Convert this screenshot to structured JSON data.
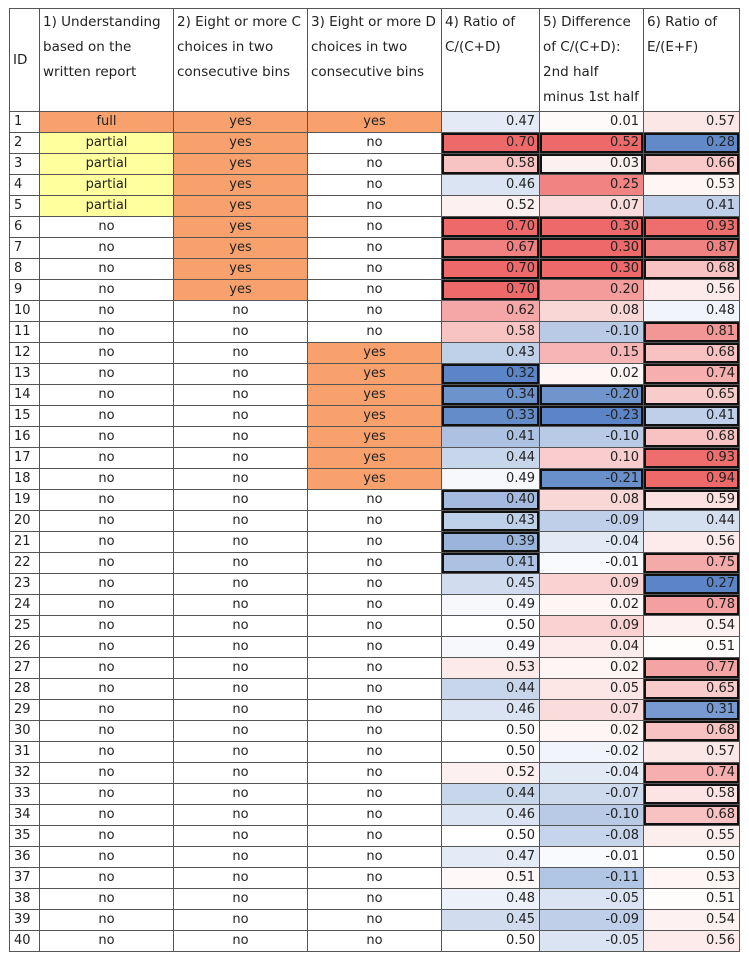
{
  "headers": [
    "ID",
    "1) Understanding based on the written report",
    "2) Eight or more C choices in two consecutive bins",
    "3) Eight or more D choices in two consecutive bins",
    "4) Ratio of C/(C+D)",
    "5) Difference of C/(C+D): 2nd half minus 1st half",
    "6) Ratio of E/(E+F)"
  ],
  "colors": {
    "orange": "#f8a16c",
    "yellow": "#ffff9d",
    "red_strong": "#ee6a6a",
    "blue_strong": "#5b85c6",
    "neutral": "#ffffff",
    "border": "#555555"
  },
  "rows": [
    {
      "id": "1",
      "u": "full",
      "c": "yes",
      "d": "yes",
      "r4": "0.47",
      "r5": "0.01",
      "r6": "0.57",
      "b4": false,
      "b5": false,
      "b6": false
    },
    {
      "id": "2",
      "u": "partial",
      "c": "yes",
      "d": "no",
      "r4": "0.70",
      "r5": "0.52",
      "r6": "0.28",
      "b4": true,
      "b5": true,
      "b6": true
    },
    {
      "id": "3",
      "u": "partial",
      "c": "yes",
      "d": "no",
      "r4": "0.58",
      "r5": "0.03",
      "r6": "0.66",
      "b4": true,
      "b5": true,
      "b6": true
    },
    {
      "id": "4",
      "u": "partial",
      "c": "yes",
      "d": "no",
      "r4": "0.46",
      "r5": "0.25",
      "r6": "0.53",
      "b4": false,
      "b5": false,
      "b6": false
    },
    {
      "id": "5",
      "u": "partial",
      "c": "yes",
      "d": "no",
      "r4": "0.52",
      "r5": "0.07",
      "r6": "0.41",
      "b4": false,
      "b5": false,
      "b6": false
    },
    {
      "id": "6",
      "u": "no",
      "c": "yes",
      "d": "no",
      "r4": "0.70",
      "r5": "0.30",
      "r6": "0.93",
      "b4": true,
      "b5": true,
      "b6": true
    },
    {
      "id": "7",
      "u": "no",
      "c": "yes",
      "d": "no",
      "r4": "0.67",
      "r5": "0.30",
      "r6": "0.87",
      "b4": true,
      "b5": true,
      "b6": true
    },
    {
      "id": "8",
      "u": "no",
      "c": "yes",
      "d": "no",
      "r4": "0.70",
      "r5": "0.30",
      "r6": "0.68",
      "b4": true,
      "b5": true,
      "b6": true
    },
    {
      "id": "9",
      "u": "no",
      "c": "yes",
      "d": "no",
      "r4": "0.70",
      "r5": "0.20",
      "r6": "0.56",
      "b4": true,
      "b5": false,
      "b6": false
    },
    {
      "id": "10",
      "u": "no",
      "c": "no",
      "d": "no",
      "r4": "0.62",
      "r5": "0.08",
      "r6": "0.48",
      "b4": false,
      "b5": false,
      "b6": false
    },
    {
      "id": "11",
      "u": "no",
      "c": "no",
      "d": "no",
      "r4": "0.58",
      "r5": "-0.10",
      "r6": "0.81",
      "b4": false,
      "b5": false,
      "b6": true
    },
    {
      "id": "12",
      "u": "no",
      "c": "no",
      "d": "yes",
      "r4": "0.43",
      "r5": "0.15",
      "r6": "0.68",
      "b4": false,
      "b5": false,
      "b6": true
    },
    {
      "id": "13",
      "u": "no",
      "c": "no",
      "d": "yes",
      "r4": "0.32",
      "r5": "0.02",
      "r6": "0.74",
      "b4": true,
      "b5": false,
      "b6": true
    },
    {
      "id": "14",
      "u": "no",
      "c": "no",
      "d": "yes",
      "r4": "0.34",
      "r5": "-0.20",
      "r6": "0.65",
      "b4": true,
      "b5": true,
      "b6": true
    },
    {
      "id": "15",
      "u": "no",
      "c": "no",
      "d": "yes",
      "r4": "0.33",
      "r5": "-0.23",
      "r6": "0.41",
      "b4": true,
      "b5": true,
      "b6": true
    },
    {
      "id": "16",
      "u": "no",
      "c": "no",
      "d": "yes",
      "r4": "0.41",
      "r5": "-0.10",
      "r6": "0.68",
      "b4": false,
      "b5": false,
      "b6": true
    },
    {
      "id": "17",
      "u": "no",
      "c": "no",
      "d": "yes",
      "r4": "0.44",
      "r5": "0.10",
      "r6": "0.93",
      "b4": false,
      "b5": false,
      "b6": true
    },
    {
      "id": "18",
      "u": "no",
      "c": "no",
      "d": "yes",
      "r4": "0.49",
      "r5": "-0.21",
      "r6": "0.94",
      "b4": false,
      "b5": true,
      "b6": true
    },
    {
      "id": "19",
      "u": "no",
      "c": "no",
      "d": "no",
      "r4": "0.40",
      "r5": "0.08",
      "r6": "0.59",
      "b4": true,
      "b5": false,
      "b6": true
    },
    {
      "id": "20",
      "u": "no",
      "c": "no",
      "d": "no",
      "r4": "0.43",
      "r5": "-0.09",
      "r6": "0.44",
      "b4": true,
      "b5": false,
      "b6": false
    },
    {
      "id": "21",
      "u": "no",
      "c": "no",
      "d": "no",
      "r4": "0.39",
      "r5": "-0.04",
      "r6": "0.56",
      "b4": true,
      "b5": false,
      "b6": false
    },
    {
      "id": "22",
      "u": "no",
      "c": "no",
      "d": "no",
      "r4": "0.41",
      "r5": "-0.01",
      "r6": "0.75",
      "b4": true,
      "b5": false,
      "b6": true
    },
    {
      "id": "23",
      "u": "no",
      "c": "no",
      "d": "no",
      "r4": "0.45",
      "r5": "0.09",
      "r6": "0.27",
      "b4": false,
      "b5": false,
      "b6": true
    },
    {
      "id": "24",
      "u": "no",
      "c": "no",
      "d": "no",
      "r4": "0.49",
      "r5": "0.02",
      "r6": "0.78",
      "b4": false,
      "b5": false,
      "b6": true
    },
    {
      "id": "25",
      "u": "no",
      "c": "no",
      "d": "no",
      "r4": "0.50",
      "r5": "0.09",
      "r6": "0.54",
      "b4": false,
      "b5": false,
      "b6": false
    },
    {
      "id": "26",
      "u": "no",
      "c": "no",
      "d": "no",
      "r4": "0.49",
      "r5": "0.04",
      "r6": "0.51",
      "b4": false,
      "b5": false,
      "b6": false
    },
    {
      "id": "27",
      "u": "no",
      "c": "no",
      "d": "no",
      "r4": "0.53",
      "r5": "0.02",
      "r6": "0.77",
      "b4": false,
      "b5": false,
      "b6": true
    },
    {
      "id": "28",
      "u": "no",
      "c": "no",
      "d": "no",
      "r4": "0.44",
      "r5": "0.05",
      "r6": "0.65",
      "b4": false,
      "b5": false,
      "b6": true
    },
    {
      "id": "29",
      "u": "no",
      "c": "no",
      "d": "no",
      "r4": "0.46",
      "r5": "0.07",
      "r6": "0.31",
      "b4": false,
      "b5": false,
      "b6": true
    },
    {
      "id": "30",
      "u": "no",
      "c": "no",
      "d": "no",
      "r4": "0.50",
      "r5": "0.02",
      "r6": "0.68",
      "b4": false,
      "b5": false,
      "b6": true
    },
    {
      "id": "31",
      "u": "no",
      "c": "no",
      "d": "no",
      "r4": "0.50",
      "r5": "-0.02",
      "r6": "0.57",
      "b4": false,
      "b5": false,
      "b6": false
    },
    {
      "id": "32",
      "u": "no",
      "c": "no",
      "d": "no",
      "r4": "0.52",
      "r5": "-0.04",
      "r6": "0.74",
      "b4": false,
      "b5": false,
      "b6": true
    },
    {
      "id": "33",
      "u": "no",
      "c": "no",
      "d": "no",
      "r4": "0.44",
      "r5": "-0.07",
      "r6": "0.58",
      "b4": false,
      "b5": false,
      "b6": true
    },
    {
      "id": "34",
      "u": "no",
      "c": "no",
      "d": "no",
      "r4": "0.46",
      "r5": "-0.10",
      "r6": "0.68",
      "b4": false,
      "b5": false,
      "b6": true
    },
    {
      "id": "35",
      "u": "no",
      "c": "no",
      "d": "no",
      "r4": "0.50",
      "r5": "-0.08",
      "r6": "0.55",
      "b4": false,
      "b5": false,
      "b6": false
    },
    {
      "id": "36",
      "u": "no",
      "c": "no",
      "d": "no",
      "r4": "0.47",
      "r5": "-0.01",
      "r6": "0.50",
      "b4": false,
      "b5": false,
      "b6": false
    },
    {
      "id": "37",
      "u": "no",
      "c": "no",
      "d": "no",
      "r4": "0.51",
      "r5": "-0.11",
      "r6": "0.53",
      "b4": false,
      "b5": false,
      "b6": false
    },
    {
      "id": "38",
      "u": "no",
      "c": "no",
      "d": "no",
      "r4": "0.48",
      "r5": "-0.05",
      "r6": "0.51",
      "b4": false,
      "b5": false,
      "b6": false
    },
    {
      "id": "39",
      "u": "no",
      "c": "no",
      "d": "no",
      "r4": "0.45",
      "r5": "-0.09",
      "r6": "0.54",
      "b4": false,
      "b5": false,
      "b6": false
    },
    {
      "id": "40",
      "u": "no",
      "c": "no",
      "d": "no",
      "r4": "0.50",
      "r5": "-0.05",
      "r6": "0.56",
      "b4": false,
      "b5": false,
      "b6": false
    }
  ]
}
